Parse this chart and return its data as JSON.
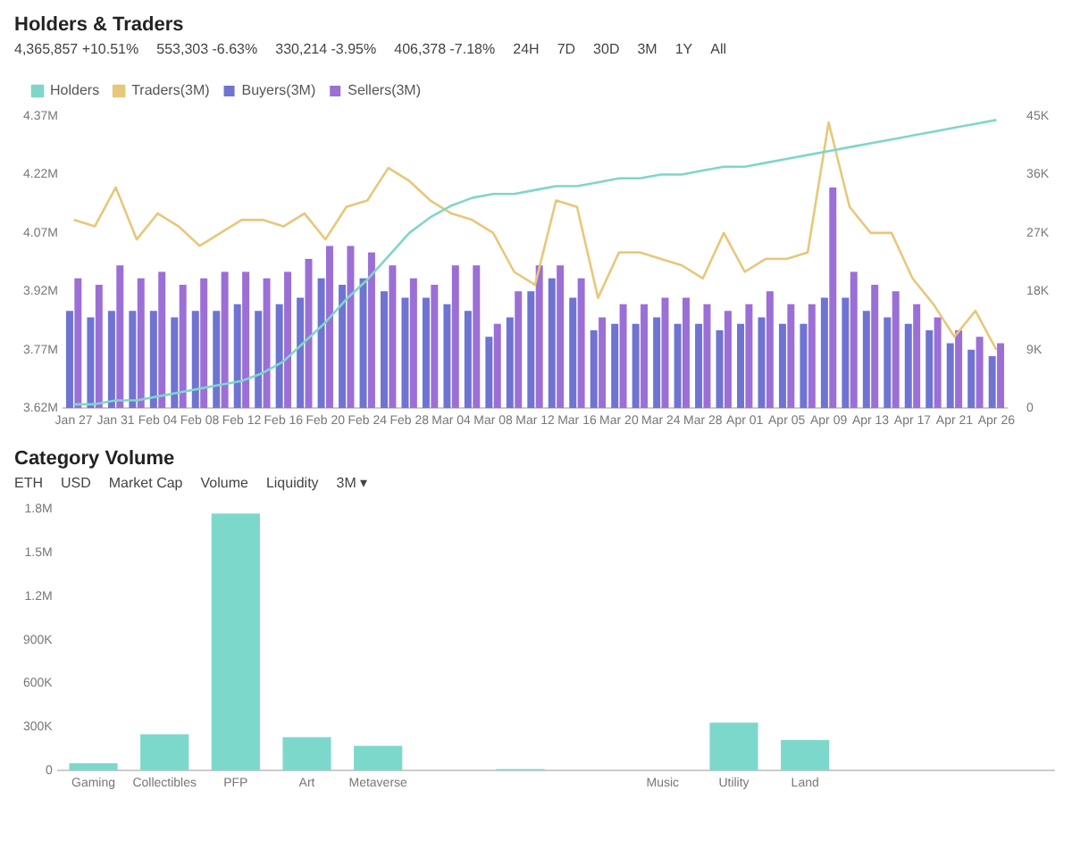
{
  "chart_data": [
    {
      "type": "bar",
      "title": "Holders & Traders",
      "categories": [
        "Jan 27",
        null,
        "Jan 31",
        null,
        "Feb 04",
        null,
        "Feb 08",
        null,
        "Feb 12",
        null,
        "Feb 16",
        null,
        "Feb 20",
        null,
        "Feb 24",
        null,
        "Feb 28",
        null,
        "Mar 04",
        null,
        "Mar 08",
        null,
        "Mar 12",
        null,
        "Mar 16",
        null,
        "Mar 20",
        null,
        "Mar 24",
        null,
        "Mar 28",
        null,
        "Apr 01",
        null,
        "Apr 05",
        null,
        "Apr 09",
        null,
        "Apr 13",
        null,
        "Apr 17",
        null,
        "Apr 21",
        null,
        "Apr 26"
      ],
      "series": [
        {
          "name": "Holders",
          "type": "line",
          "axis": "y",
          "color": "#7fd6c8",
          "values": [
            3630000,
            3630000,
            3640000,
            3640000,
            3650000,
            3660000,
            3670000,
            3680000,
            3690000,
            3710000,
            3740000,
            3790000,
            3840000,
            3900000,
            3950000,
            4010000,
            4070000,
            4110000,
            4140000,
            4160000,
            4170000,
            4170000,
            4180000,
            4190000,
            4190000,
            4200000,
            4210000,
            4210000,
            4220000,
            4220000,
            4230000,
            4240000,
            4240000,
            4250000,
            4260000,
            4270000,
            4280000,
            4290000,
            4300000,
            4310000,
            4320000,
            4330000,
            4340000,
            4350000,
            4360000
          ]
        },
        {
          "name": "Traders(3M)",
          "type": "line",
          "axis": "y2",
          "color": "#e8c77a",
          "values": [
            29000,
            28000,
            34000,
            26000,
            30000,
            28000,
            25000,
            27000,
            29000,
            29000,
            28000,
            30000,
            26000,
            31000,
            32000,
            37000,
            35000,
            32000,
            30000,
            29000,
            27000,
            21000,
            19000,
            32000,
            31000,
            17000,
            24000,
            24000,
            23000,
            22000,
            20000,
            27000,
            21000,
            23000,
            23000,
            24000,
            44000,
            31000,
            27000,
            27000,
            20000,
            16000,
            11000,
            15000,
            9000
          ]
        },
        {
          "name": "Buyers(3M)",
          "axis": "y2",
          "color": "#6f73d2",
          "values": [
            15000,
            14000,
            15000,
            15000,
            15000,
            14000,
            15000,
            15000,
            16000,
            15000,
            16000,
            17000,
            20000,
            19000,
            20000,
            18000,
            17000,
            17000,
            16000,
            15000,
            11000,
            14000,
            18000,
            20000,
            17000,
            12000,
            13000,
            13000,
            14000,
            13000,
            13000,
            12000,
            13000,
            14000,
            13000,
            13000,
            17000,
            17000,
            15000,
            14000,
            13000,
            12000,
            10000,
            9000,
            8000
          ]
        },
        {
          "name": "Sellers(3M)",
          "axis": "y2",
          "color": "#9b6fd6",
          "values": [
            20000,
            19000,
            22000,
            20000,
            21000,
            19000,
            20000,
            21000,
            21000,
            20000,
            21000,
            23000,
            25000,
            25000,
            24000,
            22000,
            20000,
            19000,
            22000,
            22000,
            13000,
            18000,
            22000,
            22000,
            20000,
            14000,
            16000,
            16000,
            17000,
            17000,
            16000,
            15000,
            16000,
            18000,
            16000,
            16000,
            34000,
            21000,
            19000,
            18000,
            16000,
            14000,
            12000,
            11000,
            10000
          ]
        }
      ],
      "ylim": [
        3620000,
        4370000
      ],
      "yticks": [
        {
          "value": 3620000,
          "label": "3.62M"
        },
        {
          "value": 3770000,
          "label": "3.77M"
        },
        {
          "value": 3920000,
          "label": "3.92M"
        },
        {
          "value": 4070000,
          "label": "4.07M"
        },
        {
          "value": 4220000,
          "label": "4.22M"
        },
        {
          "value": 4370000,
          "label": "4.37M"
        }
      ],
      "y2lim": [
        0,
        45000
      ],
      "y2ticks": [
        0,
        {
          "value": 9000,
          "label": "9K"
        },
        {
          "value": 18000,
          "label": "18K"
        },
        {
          "value": 27000,
          "label": "27K"
        },
        {
          "value": 36000,
          "label": "36K"
        },
        {
          "value": 45000,
          "label": "45K"
        }
      ],
      "legend": "top left",
      "annotations": [
        "4,365,857 +10.51%",
        "553,303 -6.63%",
        "330,214 -3.95%",
        "406,378 -7.18%",
        "24H",
        "7D",
        "30D",
        "3M",
        "1Y",
        "All"
      ]
    },
    {
      "type": "bar",
      "title": "Category Volume",
      "categories": [
        "Gaming",
        "Collectibles",
        "PFP",
        "Art",
        "Metaverse",
        null,
        null,
        null,
        "Music",
        "Utility",
        "Land",
        null,
        null,
        null
      ],
      "values": [
        50000,
        250000,
        1770000,
        230000,
        170000,
        0,
        10000,
        0,
        0,
        330000,
        210000,
        0,
        0,
        0
      ],
      "color": "#7dd8cc",
      "ylim": [
        0,
        1800000
      ],
      "yticks": [
        0,
        {
          "value": 300000,
          "label": "300K"
        },
        {
          "value": 600000,
          "label": "600K"
        },
        {
          "value": 900000,
          "label": "900K"
        },
        {
          "value": 1200000,
          "label": "1.2M"
        },
        {
          "value": 1500000,
          "label": "1.5M"
        },
        {
          "value": 1800000,
          "label": "1.8M"
        }
      ],
      "annotations": [
        "ETH",
        "USD",
        "Market Cap",
        "Volume",
        "Liquidity",
        "3M ▾"
      ]
    }
  ]
}
